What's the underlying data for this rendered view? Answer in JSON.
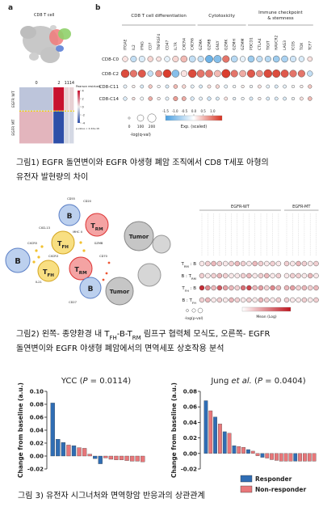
{
  "figure1": {
    "panel_a": {
      "label": "a",
      "umap_title": "CD8 T cell",
      "heatmap": {
        "columns": [
          "0",
          "2",
          "11",
          "14"
        ],
        "column_shares": [
          0.62,
          0.2,
          0.09,
          0.09
        ],
        "rows": [
          "EGFR WT",
          "EGFR MT"
        ],
        "row_shares": [
          0.42,
          0.58
        ],
        "residuals": [
          [
            -1,
            4,
            0.5,
            0.5
          ],
          [
            1,
            -4,
            -0.5,
            -0.5
          ]
        ],
        "legend_title": "Pearson residuals",
        "legend_ticks": [
          4,
          2,
          0,
          -2,
          -4
        ],
        "p_value": "p-value < 2.22e-16"
      }
    },
    "panel_b": {
      "label": "b",
      "groups": [
        {
          "name_lines": [
            "CD8 T cell differentiation"
          ],
          "genes": [
            "ITGAE",
            "IL2",
            "IFNG",
            "CD7",
            "TNFRSF4",
            "CD47",
            "IL7R",
            "CXCR4",
            "CXCR6"
          ]
        },
        {
          "name_lines": [
            "Cytotoxicity"
          ],
          "genes": [
            "GZMA",
            "GZMB",
            "GNLY",
            "GZMK",
            "GZMH",
            "GZMM"
          ]
        },
        {
          "name_lines": [
            "Immune checkpoint",
            "& stemness"
          ],
          "genes": [
            "PDCD1",
            "CTLA4",
            "TIGIT",
            "HAVCR2",
            "LAG3",
            "ICOS",
            "TOX",
            "TCF7"
          ]
        }
      ],
      "rows": [
        "CD8-C0",
        "CD8-C2",
        "CD8-C11",
        "CD8-C14"
      ],
      "exp": [
        [
          0.2,
          -0.5,
          -0.3,
          0.3,
          0.2,
          -0.2,
          0.3,
          0.5,
          -0.5,
          -0.5,
          -1.2,
          -1.0,
          1.0,
          -0.6,
          -0.2,
          -0.8,
          -0.5,
          -0.6,
          -0.8,
          -0.7,
          -0.4,
          -0.3,
          0.2
        ],
        [
          1.3,
          1.0,
          1.2,
          -0.5,
          0.8,
          1.4,
          -1.0,
          0.2,
          1.3,
          1.0,
          1.0,
          0.5,
          1.4,
          1.0,
          0.6,
          1.2,
          0.8,
          1.3,
          1.3,
          1.2,
          1.0,
          1.0,
          -0.5
        ],
        [
          -0.2,
          0.1,
          -0.3,
          0.4,
          0,
          -0.3,
          0.5,
          0.3,
          -0.2,
          -0.3,
          0.2,
          0.3,
          -0.2,
          -0.1,
          0.1,
          -0.1,
          0.2,
          -0.2,
          -0.3,
          -0.2,
          0,
          0.1,
          0.4
        ],
        [
          -0.3,
          0.2,
          -0.1,
          0.6,
          0.1,
          -0.2,
          0.7,
          0.6,
          -0.3,
          -0.2,
          -0.4,
          -0.3,
          0.2,
          -0.2,
          -0.1,
          -0.3,
          0.1,
          -0.3,
          -0.3,
          -0.3,
          -0.1,
          0.2,
          0.5
        ]
      ],
      "neglogq": [
        [
          60,
          80,
          80,
          60,
          40,
          60,
          80,
          100,
          100,
          80,
          150,
          150,
          120,
          100,
          60,
          100,
          80,
          80,
          100,
          100,
          80,
          60,
          40
        ],
        [
          180,
          120,
          150,
          60,
          100,
          180,
          140,
          80,
          180,
          150,
          140,
          100,
          200,
          120,
          100,
          160,
          100,
          180,
          160,
          150,
          120,
          120,
          60
        ],
        [
          10,
          5,
          10,
          15,
          5,
          10,
          20,
          15,
          10,
          10,
          10,
          15,
          10,
          5,
          5,
          5,
          10,
          10,
          10,
          10,
          5,
          5,
          15
        ],
        [
          15,
          5,
          10,
          20,
          5,
          10,
          30,
          25,
          15,
          10,
          15,
          10,
          10,
          5,
          5,
          10,
          5,
          10,
          10,
          10,
          5,
          10,
          20
        ]
      ],
      "size_legend": {
        "title": "-log(q-val)",
        "values": [
          0,
          100,
          200
        ]
      },
      "color_legend": {
        "title": "Exp. (scaled)",
        "lim": [
          -1.5,
          1.5
        ],
        "ticks": [
          -1.5,
          {
            "value": -1,
            "label": "-1.0"
          },
          -0.5,
          {
            "value": 0,
            "label": "0.0"
          },
          0.5,
          {
            "value": 1,
            "label": "1.0"
          }
        ]
      }
    },
    "caption_lines": [
      "그림1) EGFR 돌연변이와 EGFR 야생형 폐암 조직에서 CD8 T세포 아형의",
      "유전자 발현량의 차이"
    ]
  },
  "figure2": {
    "cells": {
      "b": "B",
      "tfh": [
        {
          "text": "T"
        },
        {
          "text": "FH",
          "sub": true
        }
      ],
      "trm": [
        {
          "text": "T"
        },
        {
          "text": "RM",
          "sub": true
        }
      ],
      "tumor": "Tumor"
    },
    "markers": [
      "CD55",
      "CD20",
      "CXCL13",
      "MHC II",
      "CXCR5",
      "IL21",
      "GZMB",
      "CXCR3",
      "CD70",
      "CD27"
    ],
    "dotplot": {
      "groups": [
        {
          "name": "EGFR-WT",
          "mean": [
            [
              0.1,
              0.2,
              0.3,
              0.2,
              0.1,
              0.2,
              0.3,
              0.2,
              0.1,
              0.3,
              0.2,
              0.1,
              0.2,
              0.1
            ],
            [
              0.2,
              0.1,
              0.2,
              0.3,
              0.2,
              0.1,
              0.1,
              0.2,
              0.3,
              0.1,
              0.2,
              0.3,
              0.1,
              0.2
            ],
            [
              0.9,
              0.5,
              0.3,
              0.7,
              0.4,
              0.3,
              0.2,
              0.6,
              0.8,
              0.3,
              0.4,
              0.2,
              0.5,
              0.3
            ],
            [
              0.2,
              0.3,
              0.1,
              0.2,
              0.1,
              0.3,
              0.2,
              0.1,
              0.2,
              0.1,
              0.3,
              0.2,
              0.1,
              0.2
            ]
          ]
        },
        {
          "name": "EGFR-MT",
          "mean": [
            [
              0.2,
              0.1,
              0.3,
              0.2,
              0.1,
              0.2
            ],
            [
              0.1,
              0.2,
              0.2,
              0.1,
              0.3,
              0.1
            ],
            [
              0.3,
              0.4,
              0.2,
              0.3,
              0.2,
              0.3
            ],
            [
              0.2,
              0.1,
              0.1,
              0.2,
              0.1,
              0.2
            ]
          ]
        }
      ],
      "rows": [
        [
          {
            "text": "T"
          },
          {
            "text": "RM",
            "sub": true
          },
          {
            "text": " : B"
          }
        ],
        [
          {
            "text": "B : T"
          },
          {
            "text": "RM",
            "sub": true
          }
        ],
        [
          {
            "text": "T"
          },
          {
            "text": "FH",
            "sub": true
          },
          {
            "text": " : B"
          }
        ],
        [
          {
            "text": "B : T"
          },
          {
            "text": "FH",
            "sub": true
          }
        ]
      ],
      "size_legend_title": "-log(p-val)",
      "color_legend_title": "Mean (Log)"
    },
    "caption_lines": [
      [
        {
          "text": "그림2) 왼쪽- 종양환경 내 T"
        },
        {
          "text": "FH",
          "sub": true
        },
        {
          "text": "-B-T"
        },
        {
          "text": "RM",
          "sub": true
        },
        {
          "text": " 림프구 협력체 모식도, 오른쪽- EGFR"
        }
      ],
      [
        {
          "text": "돌연변이와 EGFR 야생형 폐암에서의 면역세포 상호작용 분석"
        }
      ]
    ]
  },
  "figure3": {
    "chart_data": [
      {
        "type": "bar",
        "title": [
          {
            "text": "YCC ("
          },
          {
            "text": "P",
            "italic": true
          },
          {
            "text": " = 0.0114)"
          }
        ],
        "y_label": "Change from baseline (a.u.)",
        "ylim": [
          -0.02,
          0.1
        ],
        "yticks": [
          -0.02,
          {
            "value": 0,
            "label": "0.00"
          },
          0.02,
          0.04,
          0.06,
          0.08,
          {
            "value": 0.1,
            "label": "0.10"
          }
        ],
        "series": [
          {
            "name": "Responder",
            "color": "#2f6db4",
            "values": [
              0.082,
              0.026,
              0.021,
              null,
              0.016,
              null,
              null,
              null,
              -0.004,
              -0.012,
              null,
              null,
              null,
              null,
              null,
              null,
              null,
              null
            ]
          },
          {
            "name": "Non-responder",
            "color": "#e8777a",
            "values": [
              null,
              null,
              null,
              0.017,
              null,
              0.013,
              0.012,
              0.003,
              null,
              null,
              -0.003,
              -0.005,
              -0.006,
              -0.006,
              -0.007,
              -0.008,
              -0.008,
              -0.009
            ]
          }
        ]
      },
      {
        "type": "bar",
        "title": [
          {
            "text": "Jung "
          },
          {
            "text": "et al.",
            "italic": true
          },
          {
            "text": " ("
          },
          {
            "text": "P",
            "italic": true
          },
          {
            "text": " = 0.0404)"
          }
        ],
        "y_label": "Change from baseline (a.u.)",
        "ylim": [
          -0.02,
          0.08
        ],
        "yticks": [
          -0.02,
          {
            "value": 0,
            "label": "0.00"
          },
          0.02,
          0.04,
          0.06,
          0.08
        ],
        "series": [
          {
            "name": "Responder",
            "color": "#2f6db4",
            "values": [
              0.068,
              null,
              0.047,
              null,
              0.028,
              null,
              0.01,
              null,
              null,
              0.005,
              null,
              null,
              -0.005,
              null,
              null,
              null,
              null,
              null,
              null,
              -0.01,
              null,
              null,
              null,
              null
            ]
          },
          {
            "name": "Non-responder",
            "color": "#e8777a",
            "values": [
              null,
              0.055,
              null,
              0.038,
              null,
              0.026,
              null,
              0.009,
              0.008,
              null,
              0.003,
              -0.003,
              null,
              -0.006,
              -0.008,
              -0.009,
              -0.01,
              -0.01,
              -0.01,
              null,
              -0.01,
              -0.01,
              -0.01,
              -0.01
            ]
          }
        ]
      }
    ],
    "caption": "그림 3) 유전자 시그너처와 면역항암 반응과의 상관관계"
  }
}
